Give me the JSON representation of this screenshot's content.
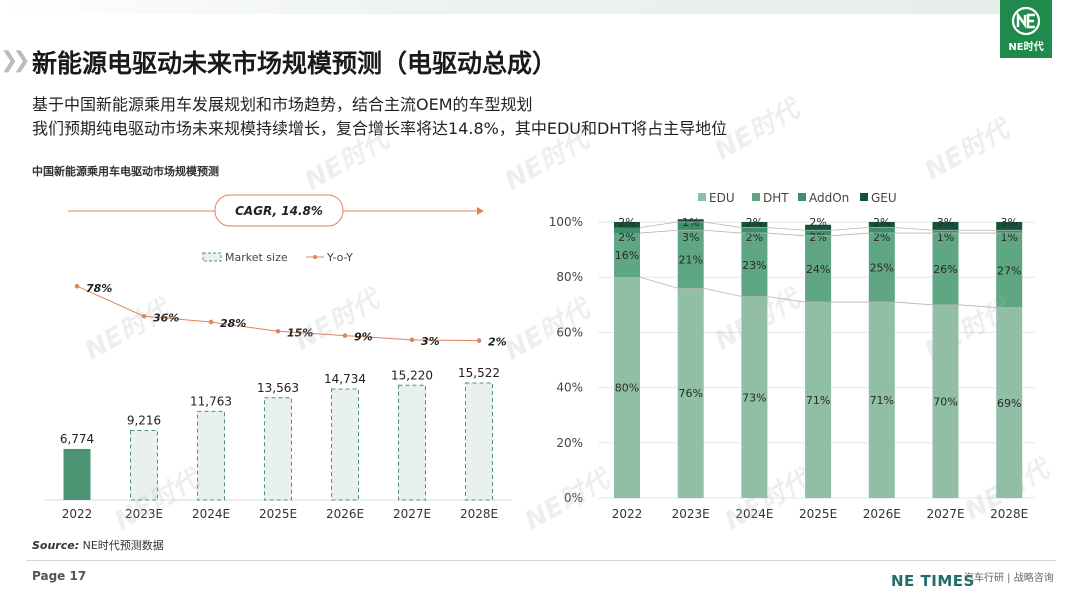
{
  "header": {
    "title": "新能源电驱动未来市场规模预测（电驱动总成）",
    "subtitle_1": "基于中国新能源乘用车发展规划和市场趋势，结合主流OEM的车型规划",
    "subtitle_2": "我们预期纯电驱动市场未来规模持续增长，复合增长率将达14.8%，其中EDU和DHT将占主导地位",
    "logo_text": "NE时代"
  },
  "left_chart_title": "中国新能源乘用车电驱动市场规模预测",
  "source": {
    "label": "Source:",
    "text": " NE时代预测数据"
  },
  "footer": {
    "page": "Page 17",
    "brand": "NE TIMES",
    "brand_sub": "汽车行研 | 战略咨询"
  },
  "watermark": "NE时代",
  "colors": {
    "brand_green": "#1f8a4c",
    "bar_2022": "#4c9474",
    "edu": "#90bfa5",
    "dht": "#5fa683",
    "addon": "#3f8e6b",
    "geu": "#16523b",
    "yoy_line": "#e0845c"
  },
  "chart_data": [
    {
      "type": "bar",
      "categories": [
        "2022",
        "2023E",
        "2024E",
        "2025E",
        "2026E",
        "2027E",
        "2028E"
      ],
      "series": [
        {
          "name": "Market size",
          "type": "bar",
          "values": [
            6774,
            9216,
            11763,
            13563,
            14734,
            15220,
            15522
          ],
          "labels": [
            "6,774",
            "9,216",
            "11,763",
            "13,563",
            "14,734",
            "15,220",
            "15,522"
          ]
        },
        {
          "name": "Y-o-Y",
          "type": "line",
          "values": [
            78,
            36,
            28,
            15,
            9,
            3,
            2
          ],
          "labels": [
            "78%",
            "36%",
            "28%",
            "15%",
            "9%",
            "3%",
            "2%"
          ]
        }
      ],
      "annotation": "CAGR, 14.8%",
      "legend": "top"
    },
    {
      "type": "bar",
      "stacked": true,
      "percent": true,
      "categories": [
        "2022",
        "2023E",
        "2024E",
        "2025E",
        "2026E",
        "2027E",
        "2028E"
      ],
      "series": [
        {
          "name": "EDU",
          "values": [
            80,
            76,
            73,
            71,
            71,
            70,
            69
          ]
        },
        {
          "name": "DHT",
          "values": [
            16,
            21,
            23,
            24,
            25,
            26,
            27
          ]
        },
        {
          "name": "AddOn",
          "values": [
            2,
            3,
            2,
            2,
            2,
            1,
            1
          ]
        },
        {
          "name": "GEU",
          "values": [
            2,
            1,
            2,
            2,
            2,
            3,
            3
          ]
        }
      ],
      "yticks": [
        "0%",
        "20%",
        "40%",
        "60%",
        "80%",
        "100%"
      ],
      "ylim": [
        0,
        100
      ],
      "legend": "top"
    }
  ]
}
